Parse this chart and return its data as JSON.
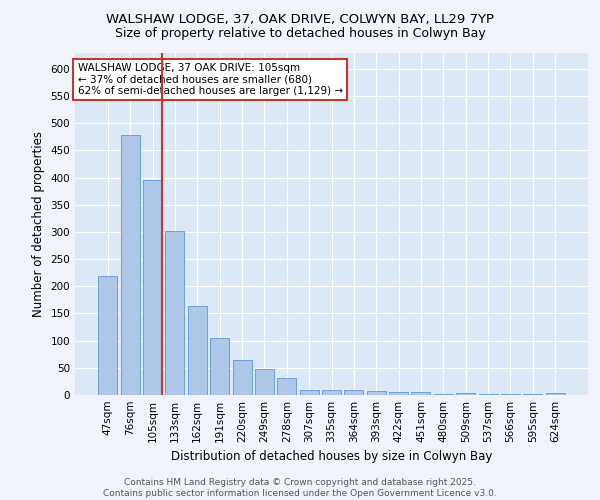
{
  "title1": "WALSHAW LODGE, 37, OAK DRIVE, COLWYN BAY, LL29 7YP",
  "title2": "Size of property relative to detached houses in Colwyn Bay",
  "xlabel": "Distribution of detached houses by size in Colwyn Bay",
  "ylabel": "Number of detached properties",
  "categories": [
    "47sqm",
    "76sqm",
    "105sqm",
    "133sqm",
    "162sqm",
    "191sqm",
    "220sqm",
    "249sqm",
    "278sqm",
    "307sqm",
    "335sqm",
    "364sqm",
    "393sqm",
    "422sqm",
    "451sqm",
    "480sqm",
    "509sqm",
    "537sqm",
    "566sqm",
    "595sqm",
    "624sqm"
  ],
  "values": [
    218,
    478,
    395,
    302,
    163,
    105,
    65,
    47,
    31,
    9,
    9,
    9,
    8,
    5,
    5,
    2,
    4,
    1,
    1,
    1,
    4
  ],
  "bar_color": "#aec6e8",
  "bar_edge_color": "#5b9bd5",
  "highlight_bar_index": 2,
  "highlight_line_color": "#c0392b",
  "annotation_text": "WALSHAW LODGE, 37 OAK DRIVE: 105sqm\n← 37% of detached houses are smaller (680)\n62% of semi-detached houses are larger (1,129) →",
  "annotation_box_color": "#ffffff",
  "annotation_box_edge_color": "#c0392b",
  "ylim": [
    0,
    630
  ],
  "yticks": [
    0,
    50,
    100,
    150,
    200,
    250,
    300,
    350,
    400,
    450,
    500,
    550,
    600
  ],
  "fig_background": "#f0f4fa",
  "background_color": "#dce8f5",
  "footer_text": "Contains HM Land Registry data © Crown copyright and database right 2025.\nContains public sector information licensed under the Open Government Licence v3.0.",
  "grid_color": "#ffffff",
  "title_fontsize": 9.5,
  "subtitle_fontsize": 9,
  "axis_label_fontsize": 8.5,
  "tick_fontsize": 7.5,
  "annotation_fontsize": 7.5,
  "footer_fontsize": 6.5
}
